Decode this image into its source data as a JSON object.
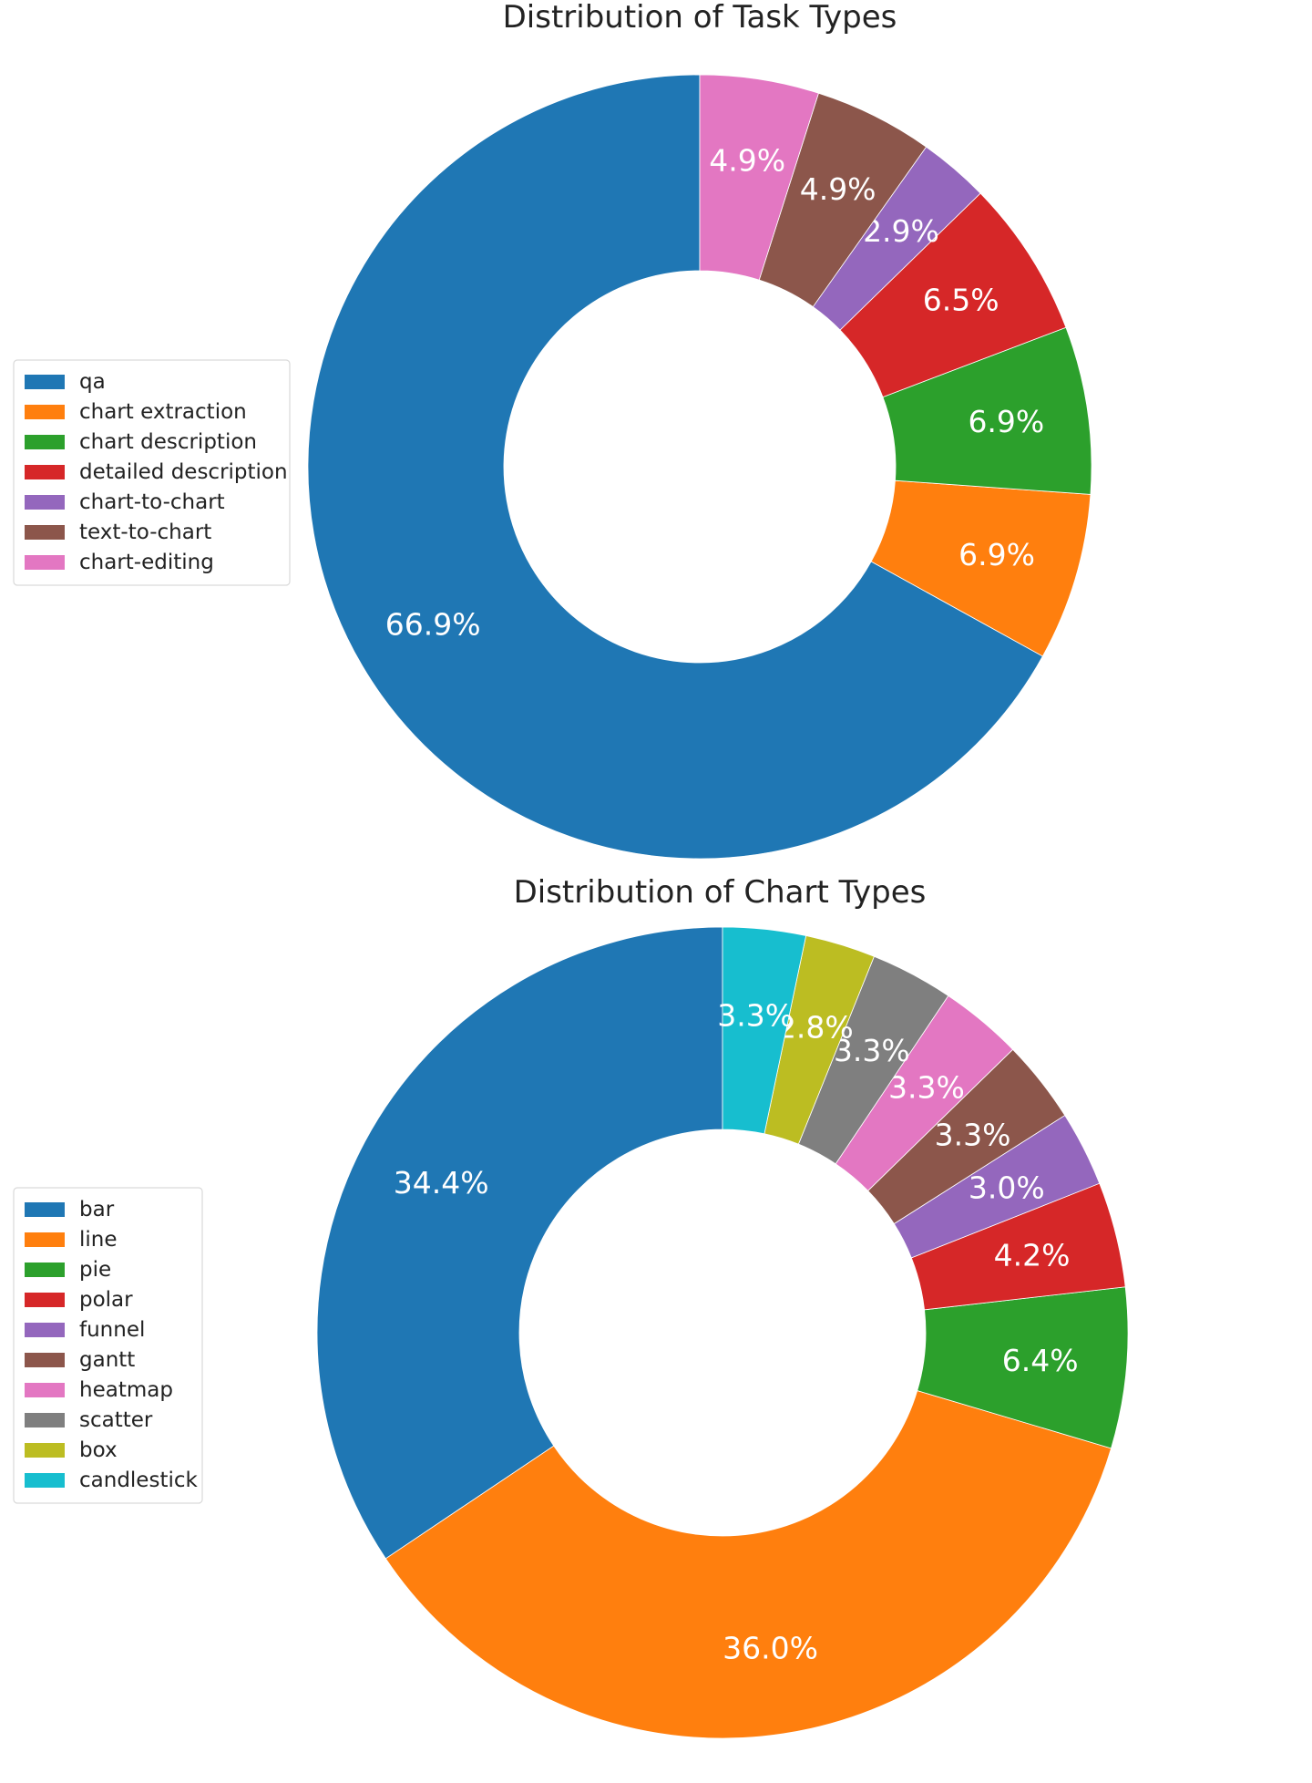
{
  "chart_data": [
    {
      "type": "pie",
      "variant": "donut",
      "title": "Distribution of Task Types",
      "legend_position": "left",
      "start": "top",
      "direction": "counterclockwise",
      "categories": [
        "qa",
        "chart extraction",
        "chart description",
        "detailed description",
        "chart-to-chart",
        "text-to-chart",
        "chart-editing"
      ],
      "values": [
        66.9,
        6.9,
        6.9,
        6.5,
        2.9,
        4.9,
        4.9
      ],
      "labels": [
        "66.9%",
        "6.9%",
        "6.9%",
        "6.5%",
        "2.9%",
        "4.9%",
        "4.9%"
      ],
      "colors": [
        "#1f77b4",
        "#ff7f0e",
        "#2ca02c",
        "#d62728",
        "#9467bd",
        "#8c564b",
        "#e377c2"
      ]
    },
    {
      "type": "pie",
      "variant": "donut",
      "title": "Distribution of Chart Types",
      "legend_position": "left",
      "start": "top",
      "direction": "counterclockwise",
      "categories": [
        "bar",
        "line",
        "pie",
        "polar",
        "funnel",
        "gantt",
        "heatmap",
        "scatter",
        "box",
        "candlestick"
      ],
      "values": [
        34.4,
        36.0,
        6.4,
        4.2,
        3.0,
        3.3,
        3.3,
        3.3,
        2.8,
        3.3
      ],
      "labels": [
        "34.4%",
        "36.0%",
        "6.4%",
        "4.2%",
        "3.0%",
        "3.3%",
        "3.3%",
        "3.3%",
        "2.8%",
        "3.3%"
      ],
      "colors": [
        "#1f77b4",
        "#ff7f0e",
        "#2ca02c",
        "#d62728",
        "#9467bd",
        "#8c564b",
        "#e377c2",
        "#7f7f7f",
        "#bcbd22",
        "#17becf"
      ]
    }
  ]
}
